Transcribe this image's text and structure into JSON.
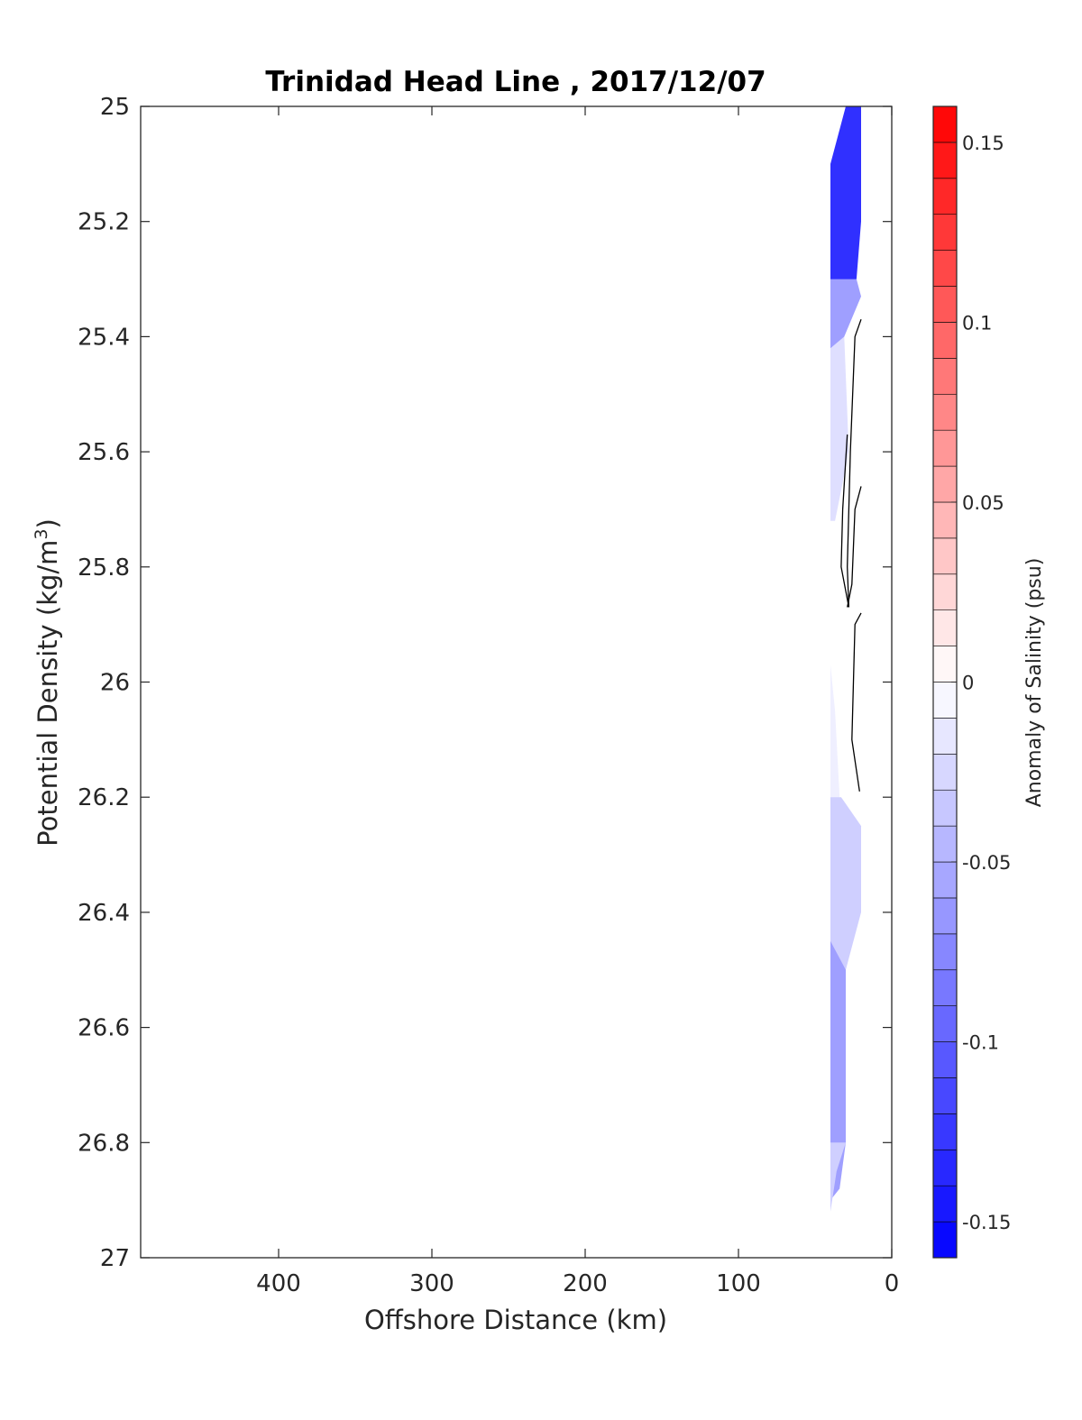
{
  "chart_data": {
    "type": "contour",
    "title": "Trinidad Head Line , 2017/12/07",
    "xlabel": "Offshore Distance (km)",
    "ylabel_text": "Potential Density (kg/m",
    "ylabel_sup": "3",
    "ylabel_close": ")",
    "xlim": [
      490,
      0
    ],
    "x_reversed": true,
    "x_ticks": [
      400,
      300,
      200,
      100,
      0
    ],
    "x_tick_labels": [
      "400",
      "300",
      "200",
      "100",
      "0"
    ],
    "ylim": [
      25,
      27
    ],
    "y_reversed": true,
    "y_ticks": [
      25,
      25.2,
      25.4,
      25.6,
      25.8,
      26,
      26.2,
      26.4,
      26.6,
      26.8,
      27
    ],
    "y_tick_labels": [
      "25",
      "25.2",
      "25.4",
      "25.6",
      "25.8",
      "26",
      "26.2",
      "26.4",
      "26.6",
      "26.8",
      "27"
    ],
    "colorbar": {
      "label": "Anomaly of Salinity (psu)",
      "range": [
        -0.16,
        0.16
      ],
      "step": 0.01,
      "ticks": [
        0.15,
        0.1,
        0.05,
        0,
        -0.05,
        -0.1,
        -0.15
      ],
      "tick_labels": [
        "0.15",
        "0.1",
        "0.05",
        "0",
        "-0.05",
        "-0.1",
        "-0.15"
      ],
      "positive_color": "#ff0000",
      "negative_color": "#0000ff",
      "zero_color": "#ffffff"
    },
    "contour_fill": [
      {
        "anomaly": -0.13,
        "polygon": [
          [
            40,
            25.1
          ],
          [
            30,
            25.0
          ],
          [
            20,
            25.0
          ],
          [
            20,
            25.2
          ],
          [
            23,
            25.3
          ],
          [
            40,
            25.32
          ]
        ]
      },
      {
        "anomaly": -0.06,
        "polygon": [
          [
            40,
            25.3
          ],
          [
            23,
            25.3
          ],
          [
            20,
            25.33
          ],
          [
            31,
            25.4
          ],
          [
            40,
            25.45
          ]
        ]
      },
      {
        "anomaly": -0.02,
        "polygon": [
          [
            40,
            25.42
          ],
          [
            31,
            25.4
          ],
          [
            28,
            25.6
          ],
          [
            37,
            25.72
          ],
          [
            40,
            25.72
          ]
        ]
      },
      {
        "anomaly": -0.01,
        "polygon": [
          [
            40,
            25.97
          ],
          [
            37,
            26.05
          ],
          [
            34,
            26.2
          ],
          [
            38,
            26.3
          ],
          [
            40,
            26.3
          ]
        ]
      },
      {
        "anomaly": -0.03,
        "polygon": [
          [
            40,
            26.2
          ],
          [
            33,
            26.2
          ],
          [
            20,
            26.25
          ],
          [
            20,
            26.4
          ],
          [
            30,
            26.5
          ],
          [
            40,
            26.5
          ]
        ]
      },
      {
        "anomaly": -0.06,
        "polygon": [
          [
            40,
            26.45
          ],
          [
            30,
            26.5
          ],
          [
            30,
            26.8
          ],
          [
            34,
            26.88
          ],
          [
            40,
            26.9
          ]
        ]
      },
      {
        "anomaly": -0.03,
        "polygon": [
          [
            40,
            26.8
          ],
          [
            30,
            26.8
          ],
          [
            36,
            26.85
          ],
          [
            40,
            26.92
          ]
        ]
      }
    ],
    "contour_lines": [
      {
        "level": 0,
        "points": [
          [
            20,
            25.37
          ],
          [
            24,
            25.4
          ],
          [
            27,
            25.6
          ],
          [
            29,
            25.8
          ],
          [
            28,
            25.87
          ],
          [
            33,
            25.8
          ],
          [
            32,
            25.7
          ],
          [
            29,
            25.57
          ]
        ]
      },
      {
        "level": 0,
        "points": [
          [
            20,
            25.66
          ],
          [
            24,
            25.7
          ],
          [
            26,
            25.83
          ],
          [
            29,
            25.87
          ]
        ]
      },
      {
        "level": 0,
        "points": [
          [
            20,
            25.88
          ],
          [
            24,
            25.9
          ],
          [
            25,
            26.0
          ],
          [
            26,
            26.1
          ],
          [
            21,
            26.19
          ]
        ]
      }
    ]
  }
}
